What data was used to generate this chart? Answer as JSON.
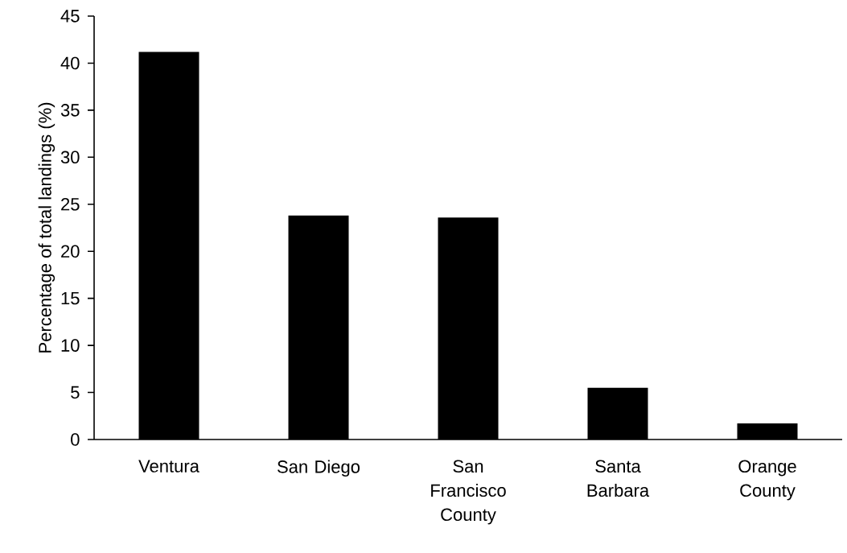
{
  "chart_data": {
    "type": "bar",
    "ylabel": "Percentage of total landings (%)",
    "categories": [
      "Ventura",
      "San Diego",
      "San Francisco County",
      "Santa Barbara",
      "Orange County"
    ],
    "values": [
      41.2,
      23.8,
      23.6,
      5.5,
      1.7
    ],
    "color": "#000000",
    "ylim": [
      0,
      45
    ],
    "yticks": [
      0,
      5,
      10,
      15,
      20,
      25,
      30,
      35,
      40,
      45
    ],
    "grid": false
  }
}
